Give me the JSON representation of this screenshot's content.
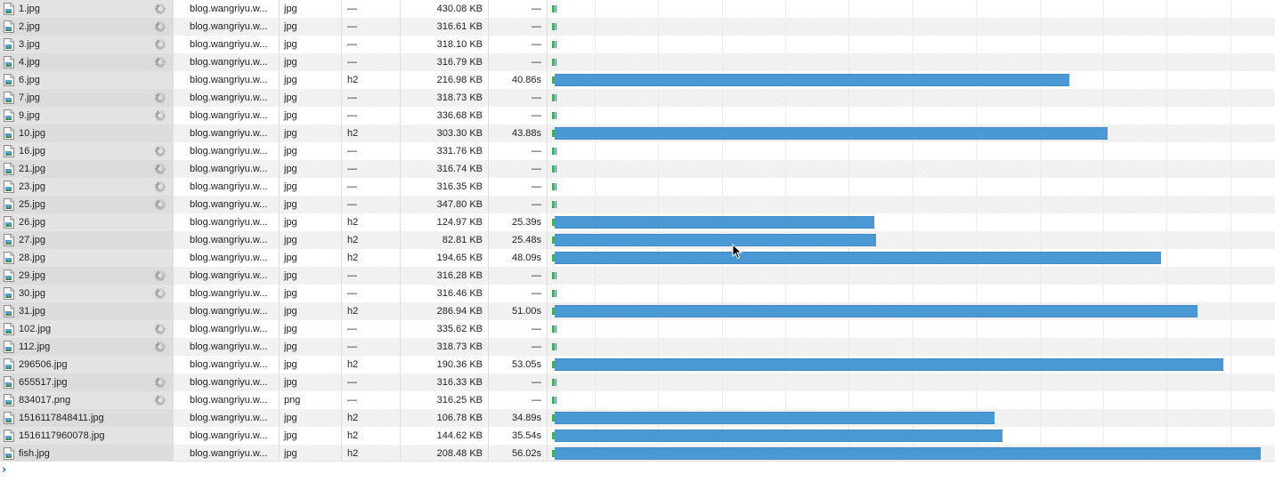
{
  "colors": {
    "bar": "#4a98d4",
    "start_marker": "#3fae57",
    "prompt": "#2a6ee6"
  },
  "waterfall": {
    "timeline_max_s": 57.0
  },
  "console": {
    "prompt_glyph": "›"
  },
  "requests": [
    {
      "name": "1.jpg",
      "domain": "blog.wangriyu.w...",
      "type": "jpg",
      "protocol": "—",
      "size": "430.08 KB",
      "time": "—",
      "duration_s": 0,
      "pending": true
    },
    {
      "name": "2.jpg",
      "domain": "blog.wangriyu.w...",
      "type": "jpg",
      "protocol": "—",
      "size": "316.61 KB",
      "time": "—",
      "duration_s": 0,
      "pending": true
    },
    {
      "name": "3.jpg",
      "domain": "blog.wangriyu.w...",
      "type": "jpg",
      "protocol": "—",
      "size": "318.10 KB",
      "time": "—",
      "duration_s": 0,
      "pending": true
    },
    {
      "name": "4.jpg",
      "domain": "blog.wangriyu.w...",
      "type": "jpg",
      "protocol": "—",
      "size": "316.79 KB",
      "time": "—",
      "duration_s": 0,
      "pending": true
    },
    {
      "name": "6.jpg",
      "domain": "blog.wangriyu.w...",
      "type": "jpg",
      "protocol": "h2",
      "size": "216.98 KB",
      "time": "40.86s",
      "duration_s": 40.86,
      "pending": false
    },
    {
      "name": "7.jpg",
      "domain": "blog.wangriyu.w...",
      "type": "jpg",
      "protocol": "—",
      "size": "318.73 KB",
      "time": "—",
      "duration_s": 0,
      "pending": true
    },
    {
      "name": "9.jpg",
      "domain": "blog.wangriyu.w...",
      "type": "jpg",
      "protocol": "—",
      "size": "336.68 KB",
      "time": "—",
      "duration_s": 0,
      "pending": true
    },
    {
      "name": "10.jpg",
      "domain": "blog.wangriyu.w...",
      "type": "jpg",
      "protocol": "h2",
      "size": "303.30 KB",
      "time": "43.88s",
      "duration_s": 43.88,
      "pending": false
    },
    {
      "name": "16.jpg",
      "domain": "blog.wangriyu.w...",
      "type": "jpg",
      "protocol": "—",
      "size": "331.76 KB",
      "time": "—",
      "duration_s": 0,
      "pending": true
    },
    {
      "name": "21.jpg",
      "domain": "blog.wangriyu.w...",
      "type": "jpg",
      "protocol": "—",
      "size": "316.74 KB",
      "time": "—",
      "duration_s": 0,
      "pending": true
    },
    {
      "name": "23.jpg",
      "domain": "blog.wangriyu.w...",
      "type": "jpg",
      "protocol": "—",
      "size": "316.35 KB",
      "time": "—",
      "duration_s": 0,
      "pending": true
    },
    {
      "name": "25.jpg",
      "domain": "blog.wangriyu.w...",
      "type": "jpg",
      "protocol": "—",
      "size": "347.80 KB",
      "time": "—",
      "duration_s": 0,
      "pending": true
    },
    {
      "name": "26.jpg",
      "domain": "blog.wangriyu.w...",
      "type": "jpg",
      "protocol": "h2",
      "size": "124.97 KB",
      "time": "25.39s",
      "duration_s": 25.39,
      "pending": false
    },
    {
      "name": "27.jpg",
      "domain": "blog.wangriyu.w...",
      "type": "jpg",
      "protocol": "h2",
      "size": "82.81 KB",
      "time": "25.48s",
      "duration_s": 25.48,
      "pending": false
    },
    {
      "name": "28.jpg",
      "domain": "blog.wangriyu.w...",
      "type": "jpg",
      "protocol": "h2",
      "size": "194.65 KB",
      "time": "48.09s",
      "duration_s": 48.09,
      "pending": false
    },
    {
      "name": "29.jpg",
      "domain": "blog.wangriyu.w...",
      "type": "jpg",
      "protocol": "—",
      "size": "316.28 KB",
      "time": "—",
      "duration_s": 0,
      "pending": true
    },
    {
      "name": "30.jpg",
      "domain": "blog.wangriyu.w...",
      "type": "jpg",
      "protocol": "—",
      "size": "316.46 KB",
      "time": "—",
      "duration_s": 0,
      "pending": true
    },
    {
      "name": "31.jpg",
      "domain": "blog.wangriyu.w...",
      "type": "jpg",
      "protocol": "h2",
      "size": "286.94 KB",
      "time": "51.00s",
      "duration_s": 51.0,
      "pending": false
    },
    {
      "name": "102.jpg",
      "domain": "blog.wangriyu.w...",
      "type": "jpg",
      "protocol": "—",
      "size": "335.62 KB",
      "time": "—",
      "duration_s": 0,
      "pending": true
    },
    {
      "name": "112.jpg",
      "domain": "blog.wangriyu.w...",
      "type": "jpg",
      "protocol": "—",
      "size": "318.73 KB",
      "time": "—",
      "duration_s": 0,
      "pending": true
    },
    {
      "name": "296506.jpg",
      "domain": "blog.wangriyu.w...",
      "type": "jpg",
      "protocol": "h2",
      "size": "190.36 KB",
      "time": "53.05s",
      "duration_s": 53.05,
      "pending": false
    },
    {
      "name": "655517.jpg",
      "domain": "blog.wangriyu.w...",
      "type": "jpg",
      "protocol": "—",
      "size": "316.33 KB",
      "time": "—",
      "duration_s": 0,
      "pending": true
    },
    {
      "name": "834017.png",
      "domain": "blog.wangriyu.w...",
      "type": "png",
      "protocol": "—",
      "size": "316.25 KB",
      "time": "—",
      "duration_s": 0,
      "pending": true
    },
    {
      "name": "1516117848411.jpg",
      "domain": "blog.wangriyu.w...",
      "type": "jpg",
      "protocol": "h2",
      "size": "106.78 KB",
      "time": "34.89s",
      "duration_s": 34.89,
      "pending": false
    },
    {
      "name": "1516117960078.jpg",
      "domain": "blog.wangriyu.w...",
      "type": "jpg",
      "protocol": "h2",
      "size": "144.62 KB",
      "time": "35.54s",
      "duration_s": 35.54,
      "pending": false
    },
    {
      "name": "fish.jpg",
      "domain": "blog.wangriyu.w...",
      "type": "jpg",
      "protocol": "h2",
      "size": "208.48 KB",
      "time": "56.02s",
      "duration_s": 56.02,
      "pending": false
    }
  ]
}
